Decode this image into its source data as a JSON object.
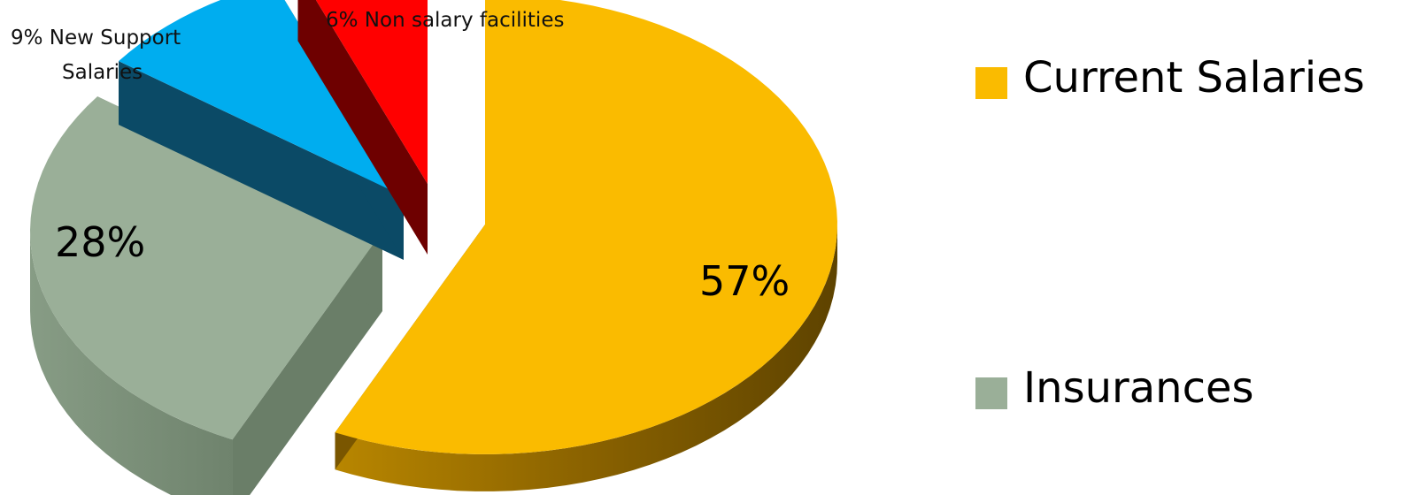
{
  "chart_data": {
    "type": "pie",
    "style": "3d-exploded",
    "slices": [
      {
        "name": "Current Salaries",
        "value": 57,
        "label": "57%",
        "color": "#FABB00",
        "side_color": "#7A5600"
      },
      {
        "name": "Insurances",
        "value": 28,
        "label": "28%",
        "color": "#9AAF98",
        "side_color": "#6A7E68"
      },
      {
        "name": "New Support Salaries",
        "value": 9,
        "label_lines": [
          "9% New Support",
          "Salaries"
        ],
        "color": "#00ADEF",
        "side_color": "#0B4A66"
      },
      {
        "name": "Non salary facilities",
        "value": 6,
        "label": "6% Non salary facilities",
        "color": "#FF0000",
        "side_color": "#6E0000"
      }
    ],
    "legend": {
      "placement": "right",
      "entries": [
        {
          "name": "Current Salaries",
          "color": "#FABB00"
        },
        {
          "name": "Insurances",
          "color": "#9AAF98"
        }
      ]
    }
  }
}
